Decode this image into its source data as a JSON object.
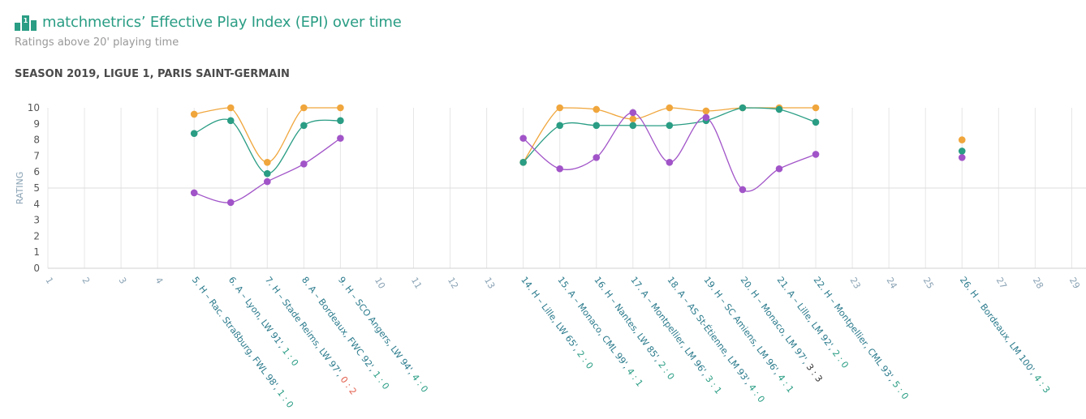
{
  "header": {
    "title": "matchmetrics’ Effective Play Index (EPI) over time",
    "subtitle": "Ratings above 20' playing time",
    "season": "SEASON 2019, LIGUE 1, PARIS SAINT-GERMAIN",
    "icon": "podium-icon"
  },
  "colors": {
    "orange": "#f0a63c",
    "green": "#2a9d84",
    "purple": "#a154c8",
    "grid": "#e6e6e6",
    "tick_plain": "#8aa3b5",
    "tick_match": "#2a7a8c",
    "score_win": "#2a9d84",
    "score_loss": "#e25c4a"
  },
  "chart_data": {
    "type": "line",
    "ylabel": "RATING",
    "ylim": [
      0,
      10
    ],
    "yticks": [
      "0",
      "1",
      "2",
      "3",
      "4",
      "5",
      "6",
      "7",
      "8",
      "9",
      "10"
    ],
    "reference_line": 5,
    "x": [
      1,
      2,
      3,
      4,
      5,
      6,
      7,
      8,
      9,
      10,
      11,
      12,
      13,
      14,
      15,
      16,
      17,
      18,
      19,
      20,
      21,
      22,
      23,
      24,
      25,
      26,
      27,
      28,
      29
    ],
    "x_labels": [
      {
        "x": 1,
        "text": "1"
      },
      {
        "x": 2,
        "text": "2"
      },
      {
        "x": 3,
        "text": "3"
      },
      {
        "x": 4,
        "text": "4"
      },
      {
        "x": 5,
        "text": "5. H – Rac. Straßburg, FWL 98', ",
        "score": "1 : 0",
        "result": "win"
      },
      {
        "x": 6,
        "text": "6. A – Lyon, LW 91', ",
        "score": "1 : 0",
        "result": "win"
      },
      {
        "x": 7,
        "text": "7. H – Stade Reims, LW 97', ",
        "score": "0 : 2",
        "result": "loss"
      },
      {
        "x": 8,
        "text": "8. A – Bordeaux, FWC 92', ",
        "score": "1 : 0",
        "result": "win"
      },
      {
        "x": 9,
        "text": "9. H – SCO Angers, LW 94', ",
        "score": "4 : 0",
        "result": "win"
      },
      {
        "x": 10,
        "text": "10"
      },
      {
        "x": 11,
        "text": "11"
      },
      {
        "x": 12,
        "text": "12"
      },
      {
        "x": 13,
        "text": "13"
      },
      {
        "x": 14,
        "text": "14. H – Lille, LW 65', ",
        "score": "2 : 0",
        "result": "win"
      },
      {
        "x": 15,
        "text": "15. A – Monaco, CML 99', ",
        "score": "4 : 1",
        "result": "win"
      },
      {
        "x": 16,
        "text": "16. H – Nantes, LW 85', ",
        "score": "2 : 0",
        "result": "win"
      },
      {
        "x": 17,
        "text": "17. A – Montpellier, LM 96', ",
        "score": "3 : 1",
        "result": "win"
      },
      {
        "x": 18,
        "text": "18. A – AS St-Étienne, LM 93', ",
        "score": "4 : 0",
        "result": "win"
      },
      {
        "x": 19,
        "text": "19. H – SC Amiens, LM 96', ",
        "score": "4 : 1",
        "result": "win"
      },
      {
        "x": 20,
        "text": "20. H – Monaco, LM 97', ",
        "score": "3 : 3",
        "result": "draw"
      },
      {
        "x": 21,
        "text": "21. A – Lille, LM 92', ",
        "score": "2 : 0",
        "result": "win"
      },
      {
        "x": 22,
        "text": "22. H – Montpellier, CML 93', ",
        "score": "5 : 0",
        "result": "win"
      },
      {
        "x": 23,
        "text": "23"
      },
      {
        "x": 24,
        "text": "24"
      },
      {
        "x": 25,
        "text": "25"
      },
      {
        "x": 26,
        "text": "26. H – Bordeaux, LM 100', ",
        "score": "4 : 3",
        "result": "win"
      },
      {
        "x": 27,
        "text": "27"
      },
      {
        "x": 28,
        "text": "28"
      },
      {
        "x": 29,
        "text": "29"
      }
    ],
    "series": [
      {
        "color": "orange",
        "values": [
          null,
          null,
          null,
          null,
          9.6,
          10.0,
          6.6,
          10.0,
          10.0,
          null,
          null,
          null,
          null,
          6.6,
          10.0,
          9.9,
          9.3,
          10.0,
          9.8,
          10.0,
          10.0,
          10.0,
          null,
          null,
          null,
          8.0,
          null,
          null,
          null
        ]
      },
      {
        "color": "green",
        "values": [
          null,
          null,
          null,
          null,
          8.4,
          9.2,
          5.9,
          8.9,
          9.2,
          null,
          null,
          null,
          null,
          6.6,
          8.9,
          8.9,
          8.9,
          8.9,
          9.2,
          10.0,
          9.9,
          9.1,
          null,
          null,
          null,
          7.3,
          null,
          null,
          null
        ]
      },
      {
        "color": "purple",
        "values": [
          null,
          null,
          null,
          null,
          4.7,
          4.1,
          5.4,
          6.5,
          8.1,
          null,
          null,
          null,
          null,
          8.1,
          6.2,
          6.9,
          9.7,
          6.6,
          9.4,
          4.9,
          6.2,
          7.1,
          null,
          null,
          null,
          6.9,
          null,
          null,
          null
        ]
      }
    ],
    "grid": true,
    "legend": "none"
  }
}
